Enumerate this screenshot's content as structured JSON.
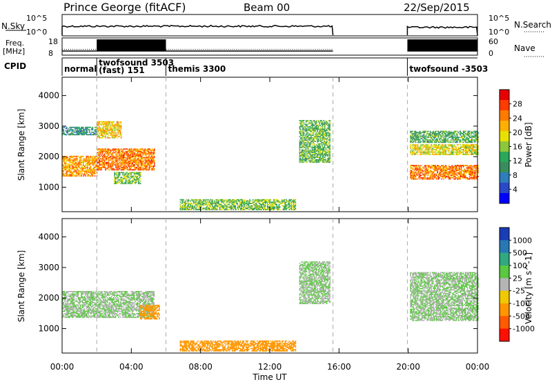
{
  "header": {
    "station": "Prince George (fitACF)",
    "beam": "Beam 00",
    "date": "22/Sep/2015"
  },
  "nsky": {
    "label": "N.Sky",
    "ytick_top": "10^5",
    "ytick_bottom": "10^0",
    "right_label": "N.Search",
    "right_tick_top": "10^5",
    "right_tick_bottom": "10^0",
    "segments": [
      {
        "start": 0.0,
        "end": 15.65,
        "level": 0.45
      },
      {
        "start": 19.95,
        "end": 24.0,
        "level": 0.4
      }
    ]
  },
  "freq": {
    "label_line1": "Freq.",
    "label_line2": "[MHz]",
    "ytick_top": "18",
    "ytick_bottom": "8",
    "right_label": "Nave",
    "right_tick_top": "60",
    "right_tick_bottom": "0",
    "freq_mhz": [
      {
        "start": 0.0,
        "end": 2.0,
        "value": 10.4
      },
      {
        "start": 2.0,
        "end": 6.0,
        "value": 10.4
      },
      {
        "start": 6.0,
        "end": 15.65,
        "value": 10.4
      },
      {
        "start": 19.95,
        "end": 24.0,
        "value": 10.4
      }
    ],
    "nave": [
      {
        "start": 0.0,
        "end": 2.0,
        "value": 20
      },
      {
        "start": 2.0,
        "end": 6.0,
        "value": 55
      },
      {
        "start": 6.0,
        "end": 15.65,
        "value": 20
      },
      {
        "start": 19.95,
        "end": 24.0,
        "value": 55
      }
    ]
  },
  "cpid": {
    "label": "CPID",
    "modes": [
      {
        "start": 0.0,
        "name": "normal"
      },
      {
        "start": 2.0,
        "name": "twofsound 3503",
        "name2": "(fast) 151"
      },
      {
        "start": 6.0,
        "name": "themis 3300"
      },
      {
        "start": 19.95,
        "name": "twofsound -3503"
      }
    ]
  },
  "xaxis": {
    "label": "Time UT",
    "min": 0,
    "max": 24,
    "ticks": [
      {
        "v": 0,
        "label": "00:00"
      },
      {
        "v": 4,
        "label": "04:00"
      },
      {
        "v": 8,
        "label": "08:00"
      },
      {
        "v": 12,
        "label": "12:00"
      },
      {
        "v": 16,
        "label": "16:00"
      },
      {
        "v": 20,
        "label": "20:00"
      },
      {
        "v": 24,
        "label": "00:00"
      }
    ]
  },
  "yaxis": {
    "label": "Slant Range [km]",
    "min": 200,
    "max": 4600,
    "ticks": [
      "1000",
      "2000",
      "3000",
      "4000"
    ]
  },
  "power_colorbar": {
    "label": "Power [dB]",
    "ticks": [
      "4",
      "8",
      "12",
      "16",
      "20",
      "24",
      "28"
    ],
    "colors": [
      "#0000ff",
      "#2a49c8",
      "#2e7dbc",
      "#3a8c5c",
      "#2aa85a",
      "#8cc83a",
      "#e8e000",
      "#ffb000",
      "#ff7a00",
      "#ff3c00",
      "#e80000"
    ]
  },
  "velocity_colorbar": {
    "label": "Velocity [m s^-1]",
    "ticks": [
      "1000",
      "500",
      "100",
      "25",
      "-25",
      "-100",
      "-500",
      "-1000"
    ],
    "colors": [
      "#1a3cb4",
      "#2878b4",
      "#30a880",
      "#5ac840",
      "#b4b4b4",
      "#f0c800",
      "#ff9600",
      "#ff5a00",
      "#ff1000"
    ]
  },
  "chart_data": {
    "type": "heatmap",
    "title": "Prince George (fitACF) Beam 00 22/Sep/2015",
    "xlabel": "Time UT",
    "ylabel": "Slant Range [km]",
    "xlim": [
      0,
      24
    ],
    "ylim": [
      200,
      4600
    ],
    "grid": false,
    "data_gap_hours": [
      15.65,
      19.95
    ],
    "mode_change_hours": [
      2.0,
      6.0,
      15.65,
      19.95
    ],
    "power_regions": [
      {
        "t0": 0.0,
        "t1": 2.0,
        "r0": 1350,
        "r1": 2000,
        "power_db": 22
      },
      {
        "t0": 0.0,
        "t1": 2.0,
        "r0": 2700,
        "r1": 2950,
        "power_db": 9
      },
      {
        "t0": 2.0,
        "t1": 5.3,
        "r0": 1550,
        "r1": 2250,
        "power_db": 24
      },
      {
        "t0": 2.0,
        "t1": 3.4,
        "r0": 2600,
        "r1": 3150,
        "power_db": 20
      },
      {
        "t0": 3.0,
        "t1": 4.5,
        "r0": 1100,
        "r1": 1500,
        "power_db": 14
      },
      {
        "t0": 6.8,
        "t1": 13.5,
        "r0": 250,
        "r1": 600,
        "power_db": 14
      },
      {
        "t0": 13.7,
        "t1": 15.5,
        "r0": 1800,
        "r1": 3200,
        "power_db": 13
      },
      {
        "t0": 20.1,
        "t1": 24.0,
        "r0": 1250,
        "r1": 1700,
        "power_db": 24
      },
      {
        "t0": 20.1,
        "t1": 24.0,
        "r0": 2050,
        "r1": 2400,
        "power_db": 18
      },
      {
        "t0": 20.1,
        "t1": 24.0,
        "r0": 2450,
        "r1": 2850,
        "power_db": 12
      }
    ],
    "velocity_regions": [
      {
        "t0": 0.0,
        "t1": 5.3,
        "r0": 1350,
        "r1": 2200,
        "velocity": 0
      },
      {
        "t0": 4.5,
        "t1": 5.6,
        "r0": 1300,
        "r1": 1750,
        "velocity": -300
      },
      {
        "t0": 6.8,
        "t1": 13.5,
        "r0": 250,
        "r1": 600,
        "velocity": -150
      },
      {
        "t0": 13.7,
        "t1": 15.5,
        "r0": 1800,
        "r1": 3200,
        "velocity": 0
      },
      {
        "t0": 20.1,
        "t1": 24.0,
        "r0": 1250,
        "r1": 2850,
        "velocity": 0
      }
    ]
  }
}
